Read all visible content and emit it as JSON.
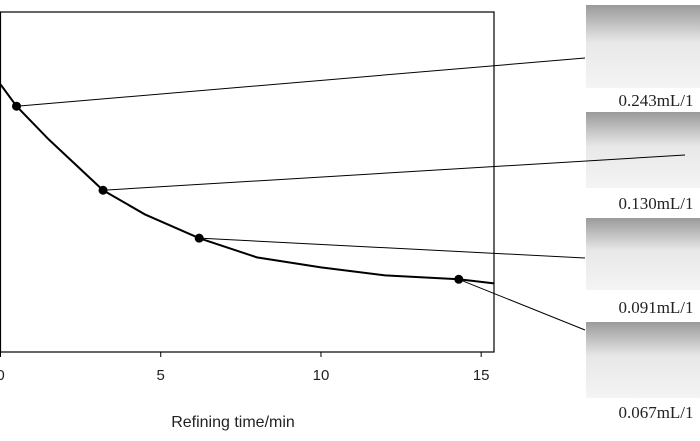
{
  "chart_data": {
    "type": "line",
    "x_label": "Refining time/min",
    "xlim": [
      0,
      15.4
    ],
    "xticks": [
      0,
      5,
      10,
      15
    ],
    "ylim": [
      0.039,
      0.49
    ],
    "log_y": true,
    "series": [
      {
        "color": "#000000",
        "markers": false,
        "x": [
          0,
          0.5,
          1.5,
          3.2,
          4.5,
          6.2,
          8,
          10,
          12,
          14.3,
          15.4
        ],
        "values": [
          0.286,
          0.243,
          0.19,
          0.13,
          0.1087,
          0.091,
          0.0789,
          0.0732,
          0.069,
          0.067,
          0.065
        ]
      },
      {
        "color": "#000000",
        "markers": true,
        "x": [
          0.5,
          3.2,
          6.2,
          14.3
        ],
        "values": [
          0.243,
          0.13,
          0.091,
          0.067
        ],
        "value_labels": [
          "0.243mL/1",
          "0.130mL/1",
          "0.091mL/1",
          "0.067mL/1"
        ]
      }
    ]
  }
}
